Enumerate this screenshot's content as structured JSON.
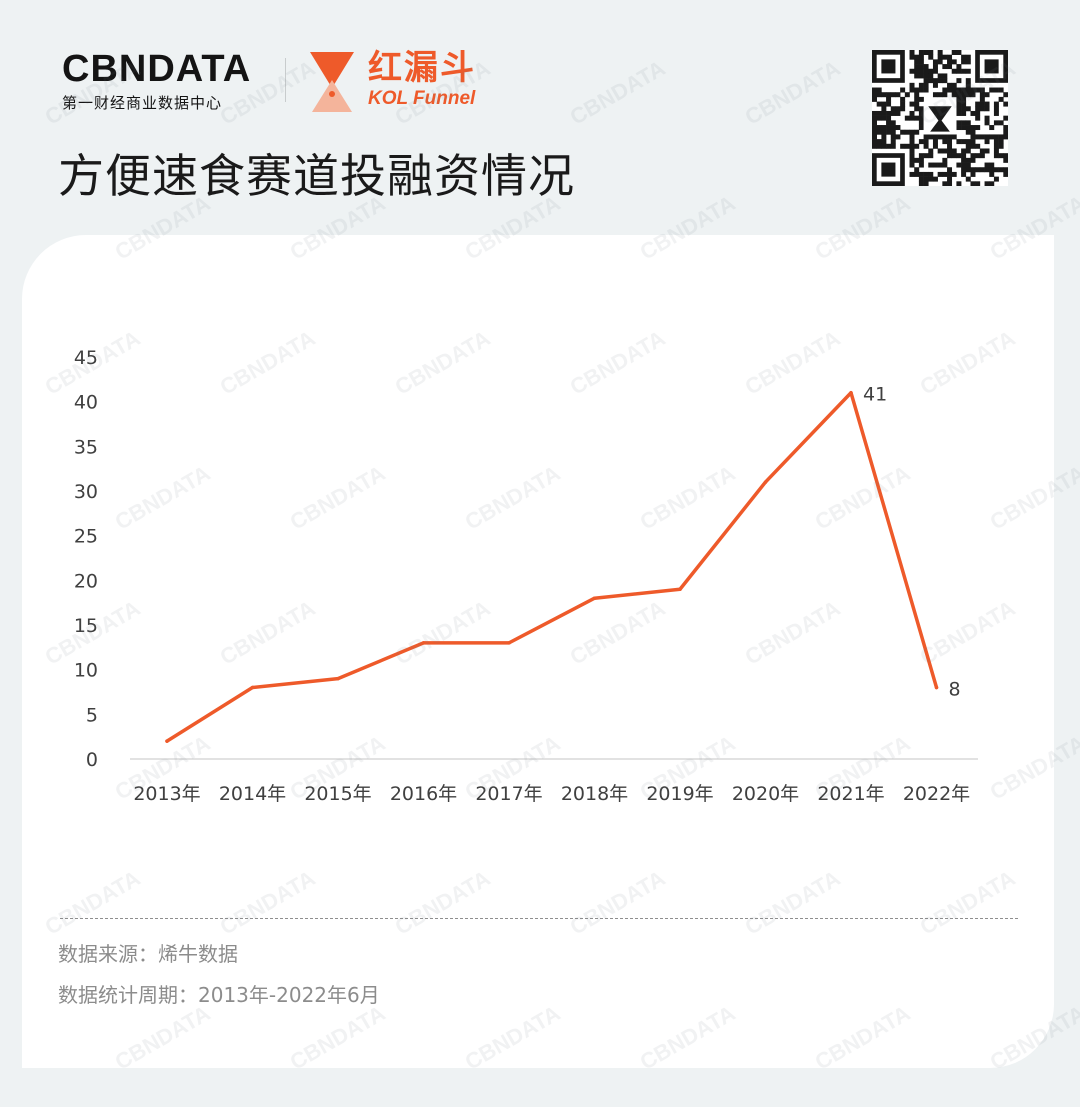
{
  "header": {
    "brand_name": "CBNDATA",
    "brand_tagline": "第一财经商业数据中心",
    "partner_name_cn": "红漏斗",
    "partner_name_en": "KOL Funnel",
    "title": "方便速食赛道投融资情况"
  },
  "colors": {
    "accent": "#ee5a2a",
    "background": "#eef2f3",
    "card": "#ffffff",
    "text": "#1a1a1a",
    "muted": "#8c8c8c"
  },
  "icons": [
    "funnel-logo-icon",
    "qr-code-icon"
  ],
  "watermark": "CBNDATA",
  "chart_data": {
    "type": "line",
    "categories": [
      "2013年",
      "2014年",
      "2015年",
      "2016年",
      "2017年",
      "2018年",
      "2019年",
      "2020年",
      "2021年",
      "2022年"
    ],
    "series": [
      {
        "values": [
          2,
          8,
          9,
          13,
          13,
          18,
          19,
          31,
          41,
          8
        ],
        "color": "#ee5a2a"
      }
    ],
    "data_labels": [
      {
        "index": 8,
        "text": "41"
      },
      {
        "index": 9,
        "text": "8"
      }
    ],
    "yticks": [
      "0",
      "5",
      "10",
      "15",
      "20",
      "25",
      "30",
      "35",
      "40",
      "45"
    ],
    "ylim": [
      0,
      45
    ],
    "grid": false,
    "legend": "none"
  },
  "footer": {
    "source": "数据来源：烯牛数据",
    "period": "数据统计周期：2013年-2022年6月"
  }
}
